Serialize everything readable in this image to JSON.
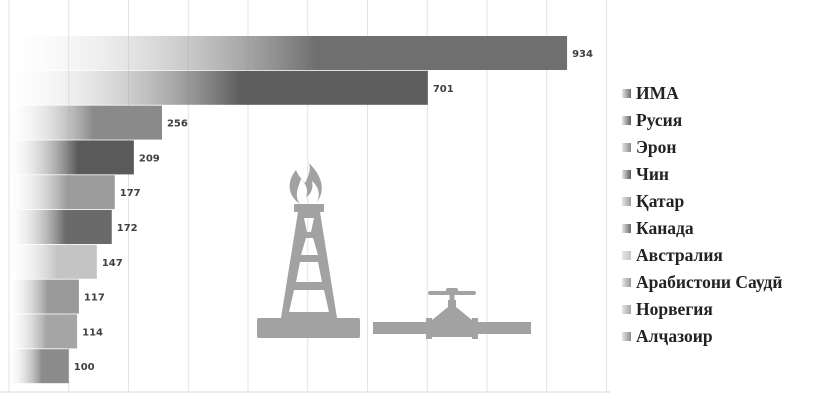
{
  "chart_data": {
    "type": "bar",
    "orientation": "horizontal",
    "categories": [
      "ИМА",
      "Русия",
      "Эрон",
      "Чин",
      "Қатар",
      "Канада",
      "Австралия",
      "Арабистони Саудӣ",
      "Норвегия",
      "Алҷазоир"
    ],
    "values": [
      934,
      701,
      256,
      209,
      177,
      172,
      147,
      117,
      114,
      100
    ],
    "title": "",
    "xlabel": "",
    "ylabel": "",
    "xlim": [
      0,
      1000
    ],
    "grid": true,
    "legend_position": "right",
    "data_labels": true,
    "colors": [
      "#6f6f6f",
      "#5e5e5e",
      "#8a8a8a",
      "#5a5a5a",
      "#9c9c9c",
      "#6a6a6a",
      "#c4c4c4",
      "#9a9a9a",
      "#a5a5a5",
      "#8c8c8c"
    ],
    "illustration_icons": [
      "gas-flame-derrick-icon",
      "pipeline-valve-icon"
    ]
  }
}
